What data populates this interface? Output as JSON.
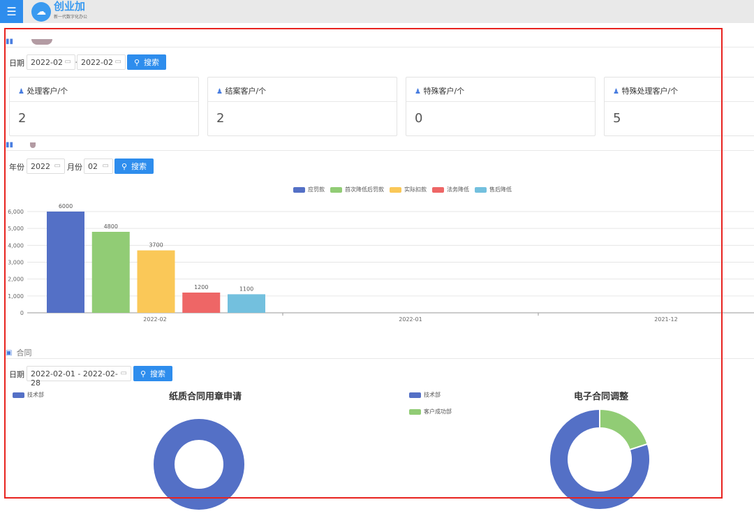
{
  "header": {
    "menu_icon": "hamburger-icon",
    "logo_name": "创业加",
    "logo_slogan": "新一代数字化办公"
  },
  "section1": {
    "date_label": "日期",
    "start": "2022-02",
    "end": "2022-02",
    "sep": "-",
    "search": "搜索",
    "cards": [
      {
        "title": "处理客户/个",
        "value": "2"
      },
      {
        "title": "结案客户/个",
        "value": "2"
      },
      {
        "title": "特殊客户/个",
        "value": "0"
      },
      {
        "title": "特殊处理客户/个",
        "value": "5"
      }
    ]
  },
  "section2": {
    "year_label": "年份",
    "year": "2022",
    "month_label": "月份",
    "month": "02",
    "search": "搜索"
  },
  "chart_data": [
    {
      "type": "bar",
      "categories": [
        "2022-02",
        "2022-01",
        "2021-12"
      ],
      "series": [
        {
          "name": "应罚款",
          "color": "#5470c6",
          "values": [
            6000,
            null,
            null
          ]
        },
        {
          "name": "首次降低后罚款",
          "color": "#91cc75",
          "values": [
            4800,
            null,
            null
          ]
        },
        {
          "name": "实际扣款",
          "color": "#fac858",
          "values": [
            3700,
            null,
            null
          ]
        },
        {
          "name": "法务降低",
          "color": "#ee6666",
          "values": [
            1200,
            null,
            null
          ]
        },
        {
          "name": "售后降低",
          "color": "#73c0de",
          "values": [
            1100,
            null,
            null
          ]
        }
      ],
      "yticks": [
        "0",
        "1,000",
        "2,000",
        "3,000",
        "4,000",
        "5,000",
        "6,000"
      ],
      "ylim": [
        0,
        6000
      ],
      "grid": true,
      "legend": "top-center"
    },
    {
      "type": "pie",
      "title": "纸质合同用章申请",
      "legend": "top-left",
      "slices": [
        {
          "name": "技术部",
          "value": 1,
          "color": "#5470c6"
        }
      ]
    },
    {
      "type": "pie",
      "title": "电子合同调整",
      "legend": "top-left",
      "slices": [
        {
          "name": "技术部",
          "value": 4,
          "color": "#5470c6"
        },
        {
          "name": "客户成功部",
          "value": 1,
          "color": "#91cc75"
        }
      ]
    }
  ],
  "section3": {
    "title": "合同",
    "date_label": "日期",
    "range": "2022-02-01 - 2022-02-28",
    "search": "搜索"
  }
}
